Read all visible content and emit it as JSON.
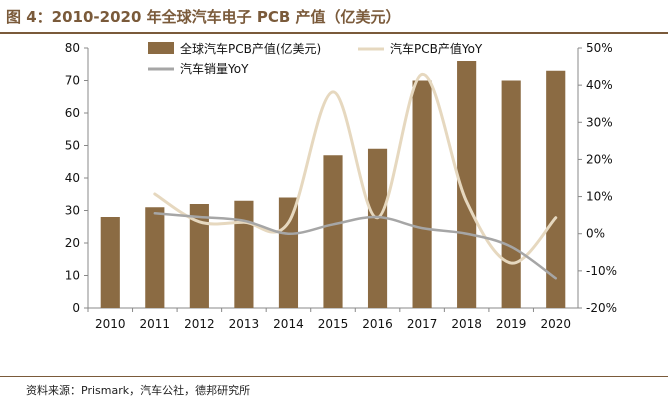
{
  "title": "图 4：2010-2020 年全球汽车电子 PCB 产值（亿美元）",
  "source": "资料来源：Prismark，汽车公社，德邦研究所",
  "colors": {
    "bar": "#8B6B43",
    "pcb_yoy": "#E6D8BF",
    "sales_yoy": "#A6A6A6",
    "accent": "#7A5A3A"
  },
  "chart_data": {
    "type": "bar+line",
    "categories": [
      "2010",
      "2011",
      "2012",
      "2013",
      "2014",
      "2015",
      "2016",
      "2017",
      "2018",
      "2019",
      "2020"
    ],
    "left_axis": {
      "ylim": [
        0,
        80
      ],
      "ticks": [
        "0",
        "10",
        "20",
        "30",
        "40",
        "50",
        "60",
        "70",
        "80"
      ]
    },
    "right_axis": {
      "ylim": [
        -20,
        50
      ],
      "ticks": [
        "-20%",
        "-10%",
        "0%",
        "10%",
        "20%",
        "30%",
        "40%",
        "50%"
      ]
    },
    "series": [
      {
        "name": "全球汽车PCB产值(亿美元)",
        "type": "bar",
        "axis": "left",
        "values": [
          28,
          31,
          32,
          33,
          34,
          47,
          49,
          70,
          76,
          70,
          73
        ]
      },
      {
        "name": "汽车PCB产值YoY",
        "type": "line",
        "axis": "right",
        "values": [
          null,
          10.7,
          3.2,
          3.1,
          3.0,
          38.2,
          4.3,
          42.9,
          8.6,
          -7.9,
          4.3
        ]
      },
      {
        "name": "汽车销量YoY",
        "type": "line",
        "axis": "right",
        "values": [
          null,
          5.5,
          4.5,
          3.5,
          0.0,
          2.5,
          4.5,
          1.5,
          0.0,
          -3.5,
          -12.0
        ]
      }
    ],
    "legend": [
      "全球汽车PCB产值(亿美元)",
      "汽车PCB产值YoY",
      "汽车销量YoY"
    ]
  }
}
